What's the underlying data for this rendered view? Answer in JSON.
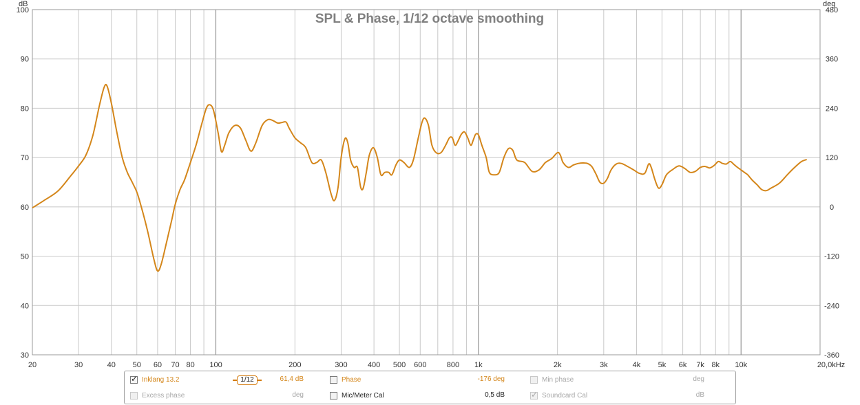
{
  "chart_data": {
    "type": "line",
    "title": "SPL & Phase, 1/12 octave smoothing",
    "left_axis_unit": "dB",
    "right_axis_unit": "deg",
    "x_scale": "log",
    "xlim": [
      20,
      20000
    ],
    "ylim": [
      30,
      100
    ],
    "y2lim": [
      -360,
      480
    ],
    "x_ticks": [
      {
        "value": 20,
        "label": "20"
      },
      {
        "value": 30,
        "label": "30"
      },
      {
        "value": 40,
        "label": "40"
      },
      {
        "value": 50,
        "label": "50"
      },
      {
        "value": 60,
        "label": "60"
      },
      {
        "value": 70,
        "label": "70"
      },
      {
        "value": 80,
        "label": "80"
      },
      {
        "value": 100,
        "label": "100"
      },
      {
        "value": 200,
        "label": "200"
      },
      {
        "value": 300,
        "label": "300"
      },
      {
        "value": 400,
        "label": "400"
      },
      {
        "value": 500,
        "label": "500"
      },
      {
        "value": 600,
        "label": "600"
      },
      {
        "value": 800,
        "label": "800"
      },
      {
        "value": 1000,
        "label": "1k"
      },
      {
        "value": 2000,
        "label": "2k"
      },
      {
        "value": 3000,
        "label": "3k"
      },
      {
        "value": 4000,
        "label": "4k"
      },
      {
        "value": 5000,
        "label": "5k"
      },
      {
        "value": 6000,
        "label": "6k"
      },
      {
        "value": 7000,
        "label": "7k"
      },
      {
        "value": 8000,
        "label": "8k"
      },
      {
        "value": 10000,
        "label": "10k"
      },
      {
        "value": 20000,
        "label": "20,0kHz"
      }
    ],
    "y_ticks": [
      30,
      40,
      50,
      60,
      70,
      80,
      90,
      100
    ],
    "y2_ticks": [
      -360,
      -240,
      -120,
      0,
      120,
      240,
      360,
      480
    ],
    "grid": true,
    "series": [
      {
        "name": "Inklang 13.2",
        "color": "#d4861a",
        "points": [
          [
            20,
            59.8
          ],
          [
            22,
            61.2
          ],
          [
            25,
            63.2
          ],
          [
            28,
            66.3
          ],
          [
            30,
            68.3
          ],
          [
            32,
            70.5
          ],
          [
            34,
            74.5
          ],
          [
            36,
            80.5
          ],
          [
            37.5,
            84.2
          ],
          [
            38.5,
            84.5
          ],
          [
            40,
            81
          ],
          [
            42,
            75
          ],
          [
            44,
            70
          ],
          [
            46,
            67
          ],
          [
            48,
            65
          ],
          [
            50,
            63
          ],
          [
            52,
            60
          ],
          [
            55,
            55
          ],
          [
            58,
            49.5
          ],
          [
            60,
            47
          ],
          [
            62,
            48.5
          ],
          [
            65,
            53
          ],
          [
            68,
            57.5
          ],
          [
            70,
            60.5
          ],
          [
            73,
            63.5
          ],
          [
            76,
            65.5
          ],
          [
            80,
            69
          ],
          [
            84,
            72.5
          ],
          [
            88,
            76.5
          ],
          [
            92,
            80
          ],
          [
            95,
            80.7
          ],
          [
            98,
            79.5
          ],
          [
            102,
            75
          ],
          [
            105,
            71.2
          ],
          [
            108,
            72.5
          ],
          [
            112,
            75
          ],
          [
            118,
            76.5
          ],
          [
            124,
            76
          ],
          [
            130,
            73.5
          ],
          [
            136,
            71.3
          ],
          [
            142,
            73
          ],
          [
            150,
            76.5
          ],
          [
            158,
            77.7
          ],
          [
            165,
            77.5
          ],
          [
            172,
            77
          ],
          [
            178,
            77.1
          ],
          [
            185,
            77.2
          ],
          [
            190,
            76
          ],
          [
            200,
            74
          ],
          [
            210,
            73
          ],
          [
            220,
            72
          ],
          [
            232,
            69
          ],
          [
            242,
            69
          ],
          [
            252,
            69.5
          ],
          [
            262,
            67
          ],
          [
            275,
            62.5
          ],
          [
            283,
            61.3
          ],
          [
            292,
            64
          ],
          [
            300,
            70
          ],
          [
            310,
            73.8
          ],
          [
            318,
            73
          ],
          [
            326,
            69.5
          ],
          [
            336,
            68
          ],
          [
            346,
            68
          ],
          [
            356,
            64
          ],
          [
            364,
            63.8
          ],
          [
            374,
            67
          ],
          [
            384,
            70.5
          ],
          [
            398,
            72
          ],
          [
            412,
            70
          ],
          [
            425,
            66.5
          ],
          [
            440,
            67
          ],
          [
            455,
            67
          ],
          [
            468,
            66.5
          ],
          [
            485,
            68.5
          ],
          [
            500,
            69.5
          ],
          [
            520,
            69
          ],
          [
            545,
            68
          ],
          [
            565,
            69.5
          ],
          [
            590,
            74
          ],
          [
            610,
            77.2
          ],
          [
            625,
            78
          ],
          [
            645,
            76.5
          ],
          [
            665,
            72.5
          ],
          [
            690,
            71
          ],
          [
            720,
            71
          ],
          [
            750,
            72.5
          ],
          [
            775,
            74
          ],
          [
            795,
            74
          ],
          [
            815,
            72.5
          ],
          [
            835,
            73.3
          ],
          [
            860,
            74.7
          ],
          [
            885,
            75.2
          ],
          [
            910,
            74
          ],
          [
            935,
            72.5
          ],
          [
            955,
            73.5
          ],
          [
            975,
            74.7
          ],
          [
            1000,
            74.6
          ],
          [
            1030,
            72.5
          ],
          [
            1070,
            70
          ],
          [
            1100,
            67
          ],
          [
            1150,
            66.5
          ],
          [
            1200,
            67
          ],
          [
            1250,
            70
          ],
          [
            1300,
            71.8
          ],
          [
            1350,
            71.5
          ],
          [
            1400,
            69.5
          ],
          [
            1500,
            69
          ],
          [
            1600,
            67.2
          ],
          [
            1700,
            67.5
          ],
          [
            1800,
            69
          ],
          [
            1900,
            69.8
          ],
          [
            2000,
            71
          ],
          [
            2050,
            70.5
          ],
          [
            2100,
            69
          ],
          [
            2200,
            68
          ],
          [
            2300,
            68.5
          ],
          [
            2400,
            68.8
          ],
          [
            2500,
            68.9
          ],
          [
            2600,
            68.8
          ],
          [
            2700,
            68.2
          ],
          [
            2800,
            66.7
          ],
          [
            2900,
            65
          ],
          [
            3000,
            64.8
          ],
          [
            3100,
            65.8
          ],
          [
            3200,
            67.5
          ],
          [
            3350,
            68.7
          ],
          [
            3500,
            68.8
          ],
          [
            3700,
            68.2
          ],
          [
            3900,
            67.5
          ],
          [
            4100,
            66.8
          ],
          [
            4300,
            66.8
          ],
          [
            4450,
            68.7
          ],
          [
            4550,
            68
          ],
          [
            4700,
            65.5
          ],
          [
            4850,
            63.8
          ],
          [
            5000,
            64.5
          ],
          [
            5200,
            66.5
          ],
          [
            5500,
            67.6
          ],
          [
            5800,
            68.3
          ],
          [
            6100,
            67.8
          ],
          [
            6400,
            67
          ],
          [
            6700,
            67.2
          ],
          [
            7000,
            68
          ],
          [
            7300,
            68.2
          ],
          [
            7600,
            67.9
          ],
          [
            7900,
            68.4
          ],
          [
            8200,
            69.2
          ],
          [
            8500,
            68.8
          ],
          [
            8800,
            68.7
          ],
          [
            9100,
            69.2
          ],
          [
            9400,
            68.6
          ],
          [
            9700,
            68
          ],
          [
            10000,
            67.5
          ],
          [
            10300,
            67
          ],
          [
            10600,
            66.5
          ],
          [
            11000,
            65.5
          ],
          [
            11500,
            64.5
          ],
          [
            12000,
            63.5
          ],
          [
            12500,
            63.3
          ],
          [
            13000,
            63.8
          ],
          [
            14000,
            64.8
          ],
          [
            15000,
            66.5
          ],
          [
            16000,
            68
          ],
          [
            17000,
            69.2
          ],
          [
            17800,
            69.6
          ]
        ]
      }
    ]
  },
  "legend": {
    "row1": {
      "spl_checkbox_checked": true,
      "spl_name": "Inklang  13.2",
      "smoothing_label": "1/12",
      "spl_value": "61,4 dB",
      "phase_checkbox_checked": false,
      "phase_label": "Phase",
      "phase_value": "-176 deg",
      "minphase_checkbox_checked": false,
      "minphase_label": "Min phase",
      "minphase_value": "deg"
    },
    "row2": {
      "excess_checkbox_checked": false,
      "excess_label": "Excess phase",
      "excess_value": "deg",
      "micmeter_checkbox_checked": false,
      "micmeter_label": "Mic/Meter Cal",
      "micmeter_value": "0,5 dB",
      "soundcard_checkbox_checked": true,
      "soundcard_label": "Soundcard Cal",
      "soundcard_value": "dB"
    }
  },
  "colors": {
    "trace": "#d4861a",
    "grid": "#c8c8c8",
    "grid_major": "#7d7d7d",
    "title": "#808080"
  }
}
